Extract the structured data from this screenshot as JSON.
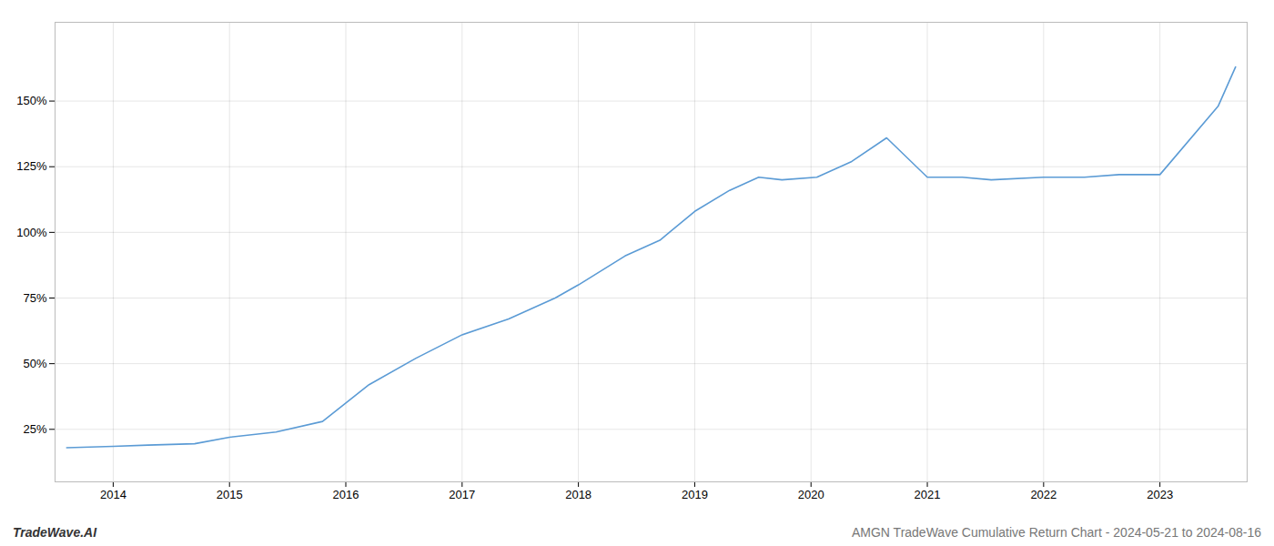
{
  "chart_data": {
    "type": "line",
    "title": "AMGN TradeWave Cumulative Return Chart - 2024-05-21 to 2024-08-16",
    "annotations": [
      "TradeWave.AI"
    ],
    "x": [
      2013.6,
      2014.0,
      2014.3,
      2014.7,
      2015.0,
      2015.4,
      2015.8,
      2016.2,
      2016.6,
      2017.0,
      2017.4,
      2017.8,
      2018.0,
      2018.4,
      2018.7,
      2019.0,
      2019.3,
      2019.55,
      2019.75,
      2020.05,
      2020.35,
      2020.65,
      2021.0,
      2021.3,
      2021.55,
      2022.0,
      2022.35,
      2022.65,
      2023.0,
      2023.5,
      2023.65
    ],
    "values": [
      18,
      18.5,
      19,
      19.5,
      22,
      24,
      28,
      42,
      52,
      61,
      67,
      75,
      80,
      91,
      97,
      108,
      116,
      121,
      120,
      121,
      127,
      136,
      121,
      121,
      120,
      121,
      121,
      122,
      122,
      148,
      163
    ],
    "color": "#5b9bd5",
    "xlim": [
      2013.5,
      2023.75
    ],
    "xticks": [
      2014,
      2015,
      2016,
      2017,
      2018,
      2019,
      2020,
      2021,
      2022,
      2023
    ],
    "ylim": [
      5,
      180
    ],
    "yticks": [
      {
        "value": 25,
        "label": "25%"
      },
      {
        "value": 50,
        "label": "50%"
      },
      {
        "value": 75,
        "label": "75%"
      },
      {
        "value": 100,
        "label": "100%"
      },
      {
        "value": 125,
        "label": "125%"
      },
      {
        "value": 150,
        "label": "150%"
      }
    ],
    "grid": true
  }
}
